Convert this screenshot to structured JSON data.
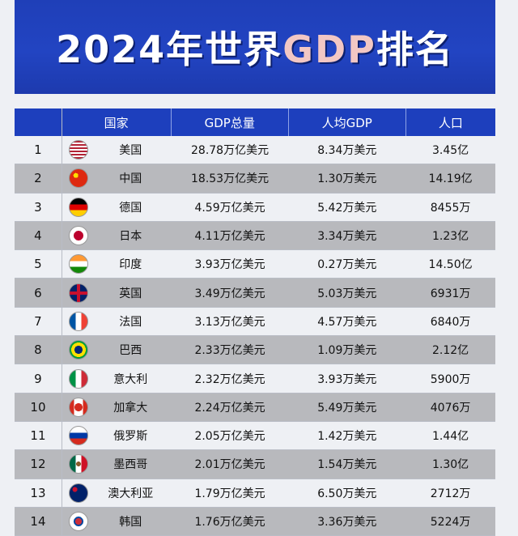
{
  "title": {
    "prefix": "2024年世界",
    "accent": "GDP",
    "suffix": "排名"
  },
  "headers": {
    "country": "国家",
    "gdp": "GDP总量",
    "per_capita": "人均GDP",
    "population": "人口"
  },
  "rows": [
    {
      "rank": "1",
      "country": "美国",
      "gdp": "28.78万亿美元",
      "per_capita": "8.34万美元",
      "population": "3.45亿",
      "flag": "us-flag-icon",
      "flag_css": "repeating-linear-gradient(180deg,#b22234 0 2px,#fff 2px 4px)"
    },
    {
      "rank": "2",
      "country": "中国",
      "gdp": "18.53万亿美元",
      "per_capita": "1.30万美元",
      "population": "14.19亿",
      "flag": "china-flag-icon",
      "flag_css": "radial-gradient(circle at 35% 35%, #ffde00 0 3px, #de2910 3px)"
    },
    {
      "rank": "3",
      "country": "德国",
      "gdp": "4.59万亿美元",
      "per_capita": "5.42万美元",
      "population": "8455万",
      "flag": "germany-flag-icon",
      "flag_css": "linear-gradient(180deg,#000 0 33%,#dd0000 33% 66%,#ffce00 66%)"
    },
    {
      "rank": "4",
      "country": "日本",
      "gdp": "4.11万亿美元",
      "per_capita": "3.34万美元",
      "population": "1.23亿",
      "flag": "japan-flag-icon",
      "flag_css": "radial-gradient(circle, #bc002d 0 6px, #fff 6px)"
    },
    {
      "rank": "5",
      "country": "印度",
      "gdp": "3.93万亿美元",
      "per_capita": "0.27万美元",
      "population": "14.50亿",
      "flag": "india-flag-icon",
      "flag_css": "linear-gradient(180deg,#ff9933 0 33%,#fff 33% 66%,#138808 66%)"
    },
    {
      "rank": "6",
      "country": "英国",
      "gdp": "3.49万亿美元",
      "per_capita": "5.03万美元",
      "population": "6931万",
      "flag": "uk-flag-icon",
      "flag_css": "linear-gradient(90deg,transparent 40%,#c8102e 40% 60%,transparent 60%),linear-gradient(180deg,#012169 40%,#c8102e 40% 60%,#012169 60%)"
    },
    {
      "rank": "7",
      "country": "法国",
      "gdp": "3.13万亿美元",
      "per_capita": "4.57万美元",
      "population": "6840万",
      "flag": "france-flag-icon",
      "flag_css": "linear-gradient(90deg,#0055a4 0 33%,#fff 33% 66%,#ef4135 66%)"
    },
    {
      "rank": "8",
      "country": "巴西",
      "gdp": "2.33万亿美元",
      "per_capita": "1.09万美元",
      "population": "2.12亿",
      "flag": "brazil-flag-icon",
      "flag_css": "radial-gradient(circle, #002776 0 5px, #ffdf00 5px 9px, #009c3b 9px)"
    },
    {
      "rank": "9",
      "country": "意大利",
      "gdp": "2.32万亿美元",
      "per_capita": "3.93万美元",
      "population": "5900万",
      "flag": "italy-flag-icon",
      "flag_css": "linear-gradient(90deg,#009246 0 33%,#fff 33% 66%,#ce2b37 66%)"
    },
    {
      "rank": "10",
      "country": "加拿大",
      "gdp": "2.24万亿美元",
      "per_capita": "5.49万美元",
      "population": "4076万",
      "flag": "canada-flag-icon",
      "flag_css": "radial-gradient(circle, #d52b1e 0 5px, transparent 5px),linear-gradient(90deg,#d52b1e 0 25%,#fff 25% 75%,#d52b1e 75%)"
    },
    {
      "rank": "11",
      "country": "俄罗斯",
      "gdp": "2.05万亿美元",
      "per_capita": "1.42万美元",
      "population": "1.44亿",
      "flag": "russia-flag-icon",
      "flag_css": "linear-gradient(180deg,#fff 0 33%,#0039a6 33% 66%,#d52b1e 66%)"
    },
    {
      "rank": "12",
      "country": "墨西哥",
      "gdp": "2.01万亿美元",
      "per_capita": "1.54万美元",
      "population": "1.30亿",
      "flag": "mexico-flag-icon",
      "flag_css": "radial-gradient(circle, #8b5a2b 0 3px, transparent 3px),linear-gradient(90deg,#006847 0 33%,#fff 33% 66%,#ce1126 66%)"
    },
    {
      "rank": "13",
      "country": "澳大利亚",
      "gdp": "1.79万亿美元",
      "per_capita": "6.50万美元",
      "population": "2712万",
      "flag": "australia-flag-icon",
      "flag_css": "radial-gradient(circle at 30% 30%, #c8102e 0 3px, transparent 3px),#012169"
    },
    {
      "rank": "14",
      "country": "韩国",
      "gdp": "1.76万亿美元",
      "per_capita": "3.36万美元",
      "population": "5224万",
      "flag": "korea-flag-icon",
      "flag_css": "radial-gradient(circle, #cd2e3a 0 4px, #0047a0 4px 6px, #fff 6px)"
    }
  ]
}
